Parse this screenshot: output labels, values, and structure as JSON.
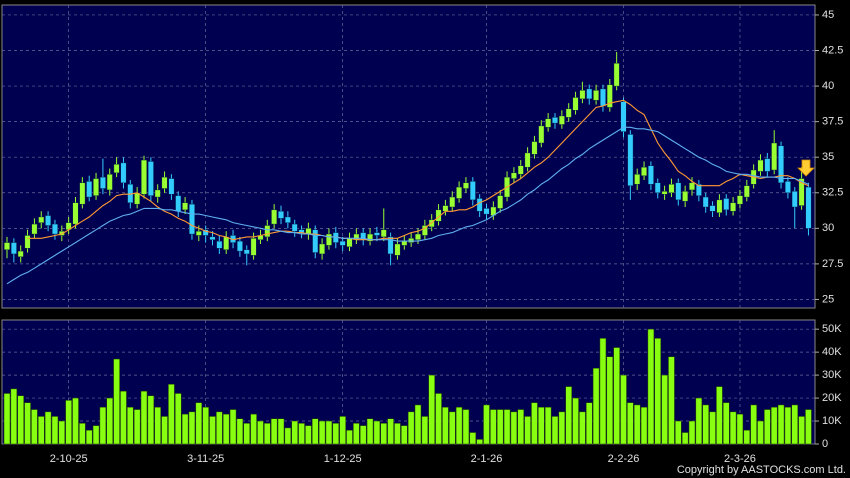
{
  "chart_data": {
    "type": "candlestick",
    "up_color": "#99ff33",
    "down_color": "#33ccff",
    "ylim": [
      24.4,
      45.7
    ],
    "yticks": [
      25,
      27.5,
      30,
      32.5,
      35,
      37.5,
      40,
      42.5,
      45
    ],
    "grid": true,
    "xticks": [
      {
        "value": 9,
        "label": "2-10-25"
      },
      {
        "value": 29,
        "label": "3-11-25"
      },
      {
        "value": 49,
        "label": "1-12-25"
      },
      {
        "value": 70,
        "label": "2-1-26"
      },
      {
        "value": 90,
        "label": "2-2-26"
      },
      {
        "value": 107,
        "label": "2-3-26"
      }
    ],
    "open": [
      28.5,
      29.0,
      28.0,
      28.6,
      29.6,
      30.4,
      30.9,
      30.3,
      29.5,
      29.9,
      30.3,
      31.7,
      33.3,
      32.3,
      33.6,
      32.7,
      33.9,
      34.6,
      33.1,
      31.7,
      32.4,
      34.7,
      32.2,
      32.8,
      33.5,
      32.3,
      31.3,
      31.7,
      29.5,
      29.9,
      29.4,
      29.1,
      28.5,
      29.5,
      29.1,
      28.5,
      28.1,
      29.2,
      29.4,
      30.3,
      31.2,
      30.8,
      30.3,
      29.9,
      29.6,
      29.9,
      28.2,
      28.8,
      29.7,
      29.1,
      28.7,
      29.2,
      29.7,
      29.1,
      29.7,
      29.4,
      29.4,
      28.1,
      28.8,
      29.0,
      29.2,
      29.5,
      30.1,
      30.5,
      31.2,
      31.5,
      32.1,
      32.8,
      33.3,
      32.1,
      31.4,
      30.9,
      31.4,
      32.2,
      33.5,
      33.8,
      34.3,
      35.2,
      36.0,
      37.1,
      37.8,
      37.3,
      37.8,
      38.3,
      39.1,
      39.8,
      39.0,
      39.8,
      38.5,
      40.0,
      38.9,
      36.6,
      33.1,
      33.7,
      34.4,
      33.2,
      32.4,
      32.5,
      33.2,
      31.9,
      32.7,
      33.1,
      32.2,
      31.6,
      31.1,
      32.1,
      31.2,
      31.7,
      32.2,
      33.1,
      34.0,
      34.9,
      34.1,
      35.8,
      33.3,
      32.6,
      31.6,
      32.9
    ],
    "high": [
      29.4,
      29.3,
      28.8,
      29.9,
      30.7,
      31.2,
      31.2,
      30.6,
      30.2,
      30.8,
      32.2,
      33.6,
      33.7,
      33.9,
      34.9,
      34.2,
      35.0,
      35.0,
      33.4,
      32.9,
      35.1,
      35.0,
      33.1,
      34.0,
      33.8,
      32.6,
      32.2,
      32.0,
      30.2,
      30.2,
      29.8,
      29.5,
      29.8,
      29.9,
      29.4,
      28.8,
      29.7,
      29.9,
      30.6,
      31.7,
      31.6,
      31.2,
      30.6,
      30.2,
      30.4,
      30.2,
      29.3,
      30.0,
      30.1,
      29.4,
      29.7,
      30.0,
      30.0,
      30.0,
      30.1,
      31.4,
      29.7,
      29.3,
      29.5,
      29.7,
      30.0,
      30.6,
      31.0,
      31.7,
      32.0,
      32.6,
      33.3,
      33.6,
      33.6,
      32.4,
      31.7,
      31.9,
      32.7,
      34.0,
      34.3,
      34.8,
      35.7,
      36.5,
      37.6,
      38.1,
      38.1,
      38.3,
      38.8,
      39.6,
      40.3,
      40.1,
      40.1,
      40.1,
      40.5,
      42.4,
      39.2,
      36.9,
      34.2,
      34.7,
      34.7,
      33.5,
      33.0,
      33.5,
      33.5,
      33.0,
      33.6,
      33.4,
      32.5,
      31.9,
      32.4,
      32.4,
      32.2,
      32.7,
      33.4,
      34.5,
      35.2,
      35.3,
      36.9,
      36.1,
      33.6,
      32.9,
      34.3,
      33.2
    ],
    "low": [
      27.9,
      27.6,
      27.6,
      28.3,
      29.3,
      30.0,
      29.8,
      29.2,
      29.1,
      29.6,
      30.0,
      31.4,
      31.9,
      32.0,
      32.4,
      32.3,
      33.6,
      32.8,
      31.4,
      31.4,
      32.1,
      31.9,
      31.8,
      32.5,
      32.0,
      30.8,
      31.0,
      29.2,
      29.1,
      29.0,
      28.8,
      28.2,
      28.2,
      28.6,
      28.0,
      27.4,
      27.8,
      28.9,
      29.1,
      30.0,
      30.3,
      30.0,
      29.4,
      29.3,
      29.2,
      27.9,
      27.8,
      28.5,
      28.6,
      28.4,
      28.4,
      28.9,
      28.8,
      28.8,
      29.1,
      29.1,
      27.4,
      27.8,
      28.5,
      28.7,
      28.9,
      29.2,
      29.8,
      30.2,
      30.9,
      31.2,
      31.8,
      32.5,
      31.6,
      30.8,
      30.6,
      30.6,
      31.1,
      31.9,
      33.2,
      33.5,
      34.0,
      34.9,
      35.7,
      36.8,
      37.0,
      37.0,
      37.5,
      38.0,
      38.8,
      38.7,
      38.7,
      38.2,
      38.2,
      39.7,
      36.4,
      32.0,
      32.7,
      33.4,
      32.7,
      32.1,
      32.0,
      32.2,
      31.6,
      31.5,
      32.3,
      31.9,
      31.1,
      30.8,
      30.8,
      30.9,
      30.9,
      31.4,
      31.9,
      32.8,
      33.7,
      33.6,
      33.8,
      32.8,
      32.1,
      30.0,
      31.3,
      29.5
    ],
    "close": [
      29,
      28.2,
      28.4,
      29.5,
      30.3,
      30.8,
      30.2,
      29.6,
      29.8,
      30.4,
      31.8,
      33.2,
      32.2,
      33.5,
      32.8,
      33.8,
      34.5,
      33.2,
      31.8,
      32.5,
      34.8,
      32.3,
      32.7,
      33.6,
      32.4,
      31.2,
      31.8,
      29.6,
      29.8,
      29.5,
      29.2,
      28.6,
      29.4,
      29.0,
      28.4,
      28.2,
      29.3,
      29.5,
      30.2,
      31.3,
      30.7,
      30.4,
      29.8,
      29.7,
      30.0,
      28.3,
      28.9,
      29.6,
      29.0,
      28.8,
      29.3,
      29.6,
      29.2,
      29.6,
      29.5,
      29.9,
      28.2,
      28.9,
      29.1,
      29.3,
      29.6,
      30.2,
      30.6,
      31.3,
      31.6,
      32.2,
      32.9,
      33.2,
      32.0,
      31.2,
      31.0,
      31.5,
      32.3,
      33.6,
      33.9,
      34.4,
      35.3,
      36.1,
      37.2,
      37.7,
      37.4,
      37.9,
      38.4,
      39.2,
      39.7,
      39.1,
      39.7,
      38.6,
      40.1,
      41.6,
      36.8,
      33.0,
      33.8,
      34.3,
      33.1,
      32.5,
      32.6,
      33.1,
      32.0,
      32.6,
      33.2,
      32.3,
      31.5,
      31.2,
      32.0,
      31.3,
      31.8,
      32.3,
      33.0,
      34.1,
      34.8,
      34.0,
      36.0,
      33.2,
      32.5,
      31.5,
      33.5,
      30.0
    ],
    "ma": [
      {
        "color": "#ff9933",
        "values": [
          null,
          null,
          null,
          29.3,
          29.3,
          29.3,
          29.4,
          29.5,
          29.6,
          29.9,
          30.2,
          30.5,
          30.8,
          31.2,
          31.6,
          31.9,
          32.3,
          32.4,
          32.4,
          32.5,
          32.2,
          31.9,
          31.5,
          31.2,
          31.0,
          30.7,
          30.5,
          30.2,
          30.0,
          29.8,
          29.7,
          29.5,
          29.4,
          29.2,
          29.3,
          29.4,
          29.4,
          29.5,
          29.6,
          29.7,
          29.8,
          29.8,
          29.7,
          29.7,
          29.6,
          29.6,
          29.5,
          29.4,
          29.4,
          29.3,
          29.3,
          29.2,
          29.2,
          29.2,
          29.2,
          29.3,
          29.3,
          29.3,
          29.5,
          29.7,
          29.8,
          30.0,
          30.4,
          30.8,
          31.2,
          31.2,
          31.3,
          31.3,
          31.5,
          31.8,
          32.0,
          32.3,
          32.6,
          32.9,
          33.2,
          33.5,
          33.9,
          34.3,
          34.6,
          35.0,
          35.5,
          36.0,
          36.5,
          37.0,
          37.5,
          38.0,
          38.5,
          38.6,
          38.8,
          38.9,
          39.0,
          38.7,
          38.3,
          38.0,
          37.0,
          36.0,
          35.3,
          34.7,
          34.0,
          33.7,
          33.3,
          33.0,
          33.0,
          33.0,
          33.0,
          33.3,
          33.5,
          33.8,
          33.7,
          33.6,
          33.5,
          33.6,
          33.6,
          33.7,
          33.7,
          33.5,
          33.2,
          33.0
        ]
      },
      {
        "color": "#5fb0f0",
        "values": [
          26.1,
          26.4,
          26.7,
          26.9,
          27.2,
          27.5,
          27.8,
          28.1,
          28.4,
          28.7,
          29.0,
          29.3,
          29.6,
          29.9,
          30.2,
          30.5,
          30.7,
          30.9,
          31.0,
          31.2,
          31.4,
          31.4,
          31.4,
          31.3,
          31.3,
          31.2,
          31.1,
          31.0,
          31.0,
          30.9,
          30.8,
          30.7,
          30.6,
          30.4,
          30.3,
          30.2,
          30.1,
          30.0,
          29.9,
          29.9,
          29.8,
          29.7,
          29.7,
          29.6,
          29.6,
          29.5,
          29.5,
          29.4,
          29.4,
          29.3,
          29.3,
          29.3,
          29.3,
          29.2,
          29.2,
          29.2,
          29.2,
          29.1,
          29.1,
          29.1,
          29.1,
          29.2,
          29.3,
          29.5,
          29.6,
          29.7,
          29.9,
          30.1,
          30.2,
          30.4,
          30.6,
          30.9,
          31.2,
          31.4,
          31.7,
          32.0,
          32.4,
          32.7,
          33.1,
          33.4,
          33.8,
          34.2,
          34.5,
          34.9,
          35.2,
          35.6,
          35.9,
          36.2,
          36.5,
          36.8,
          37.1,
          37.1,
          37.0,
          37.0,
          36.9,
          36.8,
          36.5,
          36.2,
          35.9,
          35.6,
          35.3,
          35.0,
          34.8,
          34.5,
          34.3,
          34.0,
          33.9,
          33.8,
          33.8,
          33.7,
          33.6,
          33.6,
          33.6,
          33.5,
          33.5,
          33.5,
          33.3,
          33.1
        ]
      }
    ],
    "volume": {
      "color": "#88ff11",
      "values": [
        22000,
        24000,
        21000,
        18000,
        15000,
        12000,
        14000,
        12000,
        10000,
        19000,
        20000,
        9000,
        6000,
        8000,
        16000,
        20000,
        37000,
        23000,
        16000,
        15000,
        23000,
        21000,
        16000,
        12000,
        26000,
        22000,
        13000,
        14000,
        18000,
        16000,
        12000,
        14000,
        13000,
        15000,
        11000,
        9000,
        13000,
        10000,
        9000,
        11000,
        11000,
        7000,
        10000,
        9000,
        8000,
        11000,
        10000,
        10000,
        9000,
        12000,
        6000,
        9000,
        8000,
        11000,
        10000,
        9000,
        11000,
        9000,
        8000,
        14000,
        17000,
        12000,
        30000,
        22000,
        16000,
        14000,
        16000,
        15000,
        5000,
        2000,
        17000,
        15000,
        15000,
        15000,
        14000,
        15000,
        12000,
        18000,
        16000,
        16000,
        12000,
        14000,
        25000,
        20000,
        14000,
        18000,
        33000,
        46000,
        38000,
        42000,
        30000,
        18000,
        17000,
        16000,
        50000,
        46000,
        30000,
        38000,
        10000,
        5000,
        10000,
        20000,
        17000,
        14000,
        25000,
        18000,
        14000,
        13000,
        6000,
        17000,
        10000,
        15000,
        16000,
        17000,
        16000,
        17000,
        12000,
        15000
      ],
      "ylim": [
        0,
        54000
      ],
      "yticks": [
        0,
        {
          "value": 10000,
          "label": "10K"
        },
        {
          "value": 20000,
          "label": "20K"
        },
        {
          "value": 30000,
          "label": "30K"
        },
        {
          "value": 40000,
          "label": "40K"
        },
        {
          "value": 50000,
          "label": "50K"
        }
      ]
    },
    "copyright": "Copyright by AASTOCKS.com Ltd."
  }
}
